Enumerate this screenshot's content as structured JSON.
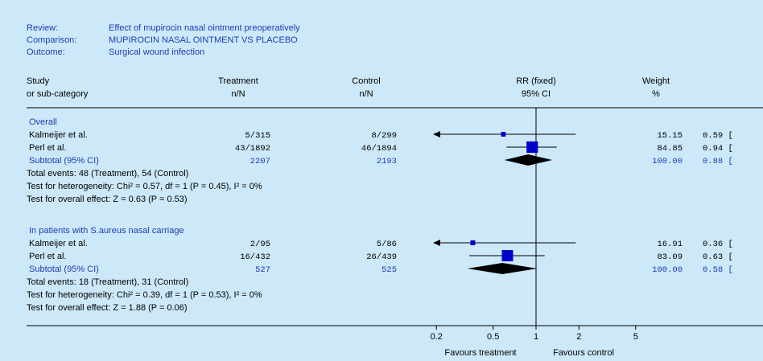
{
  "header": {
    "review_label": "Review:",
    "review_value": "Effect of mupirocin nasal ointment  preoperatively",
    "comparison_label": "Comparison:",
    "comparison_value": "MUPIROCIN NASAL OINTMENT VS PLACEBO",
    "outcome_label": "Outcome:",
    "outcome_value": "Surgical wound infection"
  },
  "columns": {
    "study_1": "Study",
    "study_2": "or sub-category",
    "treatment_1": "Treatment",
    "treatment_2": "n/N",
    "control_1": "Control",
    "control_2": "n/N",
    "rr_1": "RR (fixed)",
    "rr_2": "95% CI",
    "weight_1": "Weight",
    "weight_2": "%"
  },
  "colors": {
    "background": "#cde9f9",
    "header_text": "#1e3cb4",
    "marker": "#0000cc",
    "diamond": "#000000"
  },
  "chart_data": {
    "type": "forest",
    "scale": "log",
    "xticks": [
      "0.2",
      "0.5",
      "1",
      "2",
      "5"
    ],
    "xlim": [
      0.2,
      5
    ],
    "reference_line": 1,
    "xlabel_left": "Favours treatment",
    "xlabel_right": "Favours control",
    "groups": [
      {
        "title": "Overall",
        "studies": [
          {
            "name": "Kalmeijer et al.",
            "treatment": "5/315",
            "control": "8/299",
            "weight": "15.15",
            "rr_text": "0.59 [",
            "rr": 0.59,
            "ci": [
              0.15,
              1.9
            ],
            "arrow_left": true
          },
          {
            "name": "Perl et al.",
            "treatment": "43/1892",
            "control": "46/1894",
            "weight": "84.85",
            "rr_text": "0.94 [",
            "rr": 0.94,
            "ci": [
              0.62,
              1.4
            ],
            "arrow_left": false
          }
        ],
        "subtotal": {
          "label": "Subtotal (95% CI)",
          "treatment": "2207",
          "control": "2193",
          "weight": "100.00",
          "rr_text": "0.88 [",
          "rr": 0.88,
          "ci": [
            0.6,
            1.3
          ]
        },
        "notes": [
          "Total events: 48 (Treatment), 54 (Control)",
          "Test for heterogeneity: Chi² = 0.57, df = 1 (P = 0.45), I² = 0%",
          "Test for overall effect: Z = 0.63 (P = 0.53)"
        ]
      },
      {
        "title": "In patients with S.aureus nasal carriage",
        "studies": [
          {
            "name": "Kalmeijer et al.",
            "treatment": "2/95",
            "control": "5/86",
            "weight": "16.91",
            "rr_text": "0.36 [",
            "rr": 0.36,
            "ci": [
              0.07,
              1.9
            ],
            "arrow_left": true
          },
          {
            "name": "Perl et al.",
            "treatment": "16/432",
            "control": "26/439",
            "weight": "83.09",
            "rr_text": "0.63 [",
            "rr": 0.63,
            "ci": [
              0.34,
              1.15
            ],
            "arrow_left": false
          }
        ],
        "subtotal": {
          "label": "Subtotal (95% CI)",
          "treatment": "527",
          "control": "525",
          "weight": "100.00",
          "rr_text": "0.58 [",
          "rr": 0.58,
          "ci": [
            0.33,
            1.02
          ]
        },
        "notes": [
          "Total events: 18 (Treatment), 31 (Control)",
          "Test for heterogeneity: Chi² = 0.39, df = 1 (P = 0.53), I² = 0%",
          "Test for overall effect: Z = 1.88 (P = 0.06)"
        ]
      }
    ]
  }
}
